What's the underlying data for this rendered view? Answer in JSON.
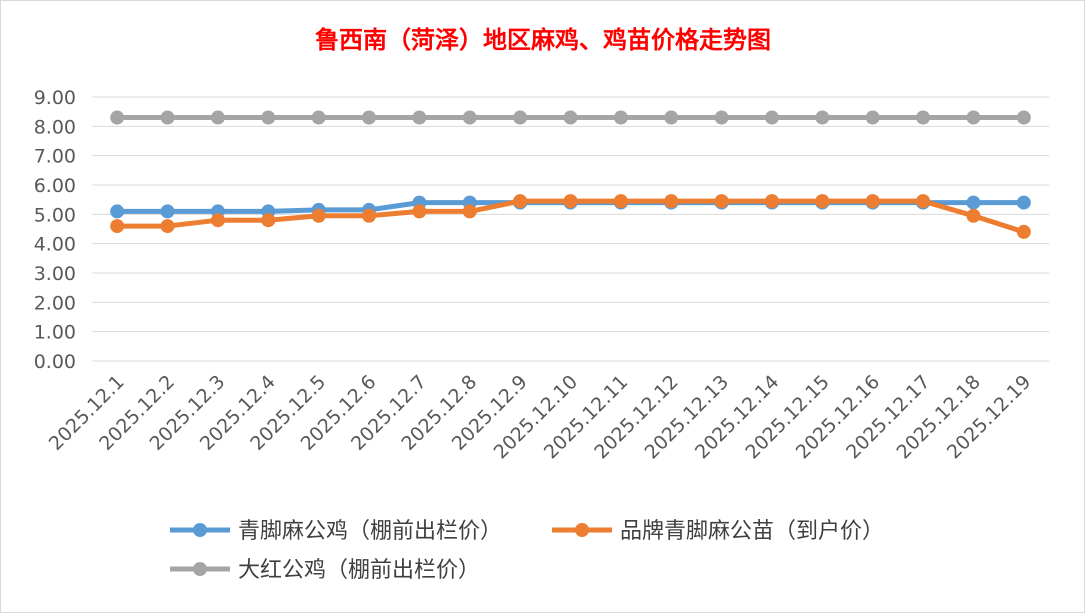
{
  "chart_data": {
    "type": "line",
    "title": "鲁西南（菏泽）地区麻鸡、鸡苗价格走势图",
    "x": [
      "2025.12.1",
      "2025.12.2",
      "2025.12.3",
      "2025.12.4",
      "2025.12.5",
      "2025.12.6",
      "2025.12.7",
      "2025.12.8",
      "2025.12.9",
      "2025.12.10",
      "2025.12.11",
      "2025.12.12",
      "2025.12.13",
      "2025.12.14",
      "2025.12.15",
      "2025.12.16",
      "2025.12.17",
      "2025.12.18",
      "2025.12.19"
    ],
    "yticks": [
      "0.00",
      "1.00",
      "2.00",
      "3.00",
      "4.00",
      "5.00",
      "6.00",
      "7.00",
      "8.00",
      "9.00"
    ],
    "ylim": [
      0,
      9
    ],
    "grid": true,
    "legend_position": "bottom",
    "series": [
      {
        "name": "青脚麻公鸡（棚前出栏价）",
        "color": "#5B9BD5",
        "values": [
          5.1,
          5.1,
          5.1,
          5.1,
          5.15,
          5.15,
          5.4,
          5.4,
          5.4,
          5.4,
          5.4,
          5.4,
          5.4,
          5.4,
          5.4,
          5.4,
          5.4,
          5.4,
          5.4
        ]
      },
      {
        "name": "品牌青脚麻公苗（到户价）",
        "color": "#ED7D31",
        "values": [
          4.6,
          4.6,
          4.8,
          4.8,
          4.95,
          4.95,
          5.1,
          5.1,
          5.45,
          5.45,
          5.45,
          5.45,
          5.45,
          5.45,
          5.45,
          5.45,
          5.45,
          4.95,
          4.4
        ]
      },
      {
        "name": "大红公鸡（棚前出栏价）",
        "color": "#A5A5A5",
        "values": [
          8.3,
          8.3,
          8.3,
          8.3,
          8.3,
          8.3,
          8.3,
          8.3,
          8.3,
          8.3,
          8.3,
          8.3,
          8.3,
          8.3,
          8.3,
          8.3,
          8.3,
          8.3,
          8.3
        ]
      }
    ],
    "title_color": "#FF0000"
  }
}
